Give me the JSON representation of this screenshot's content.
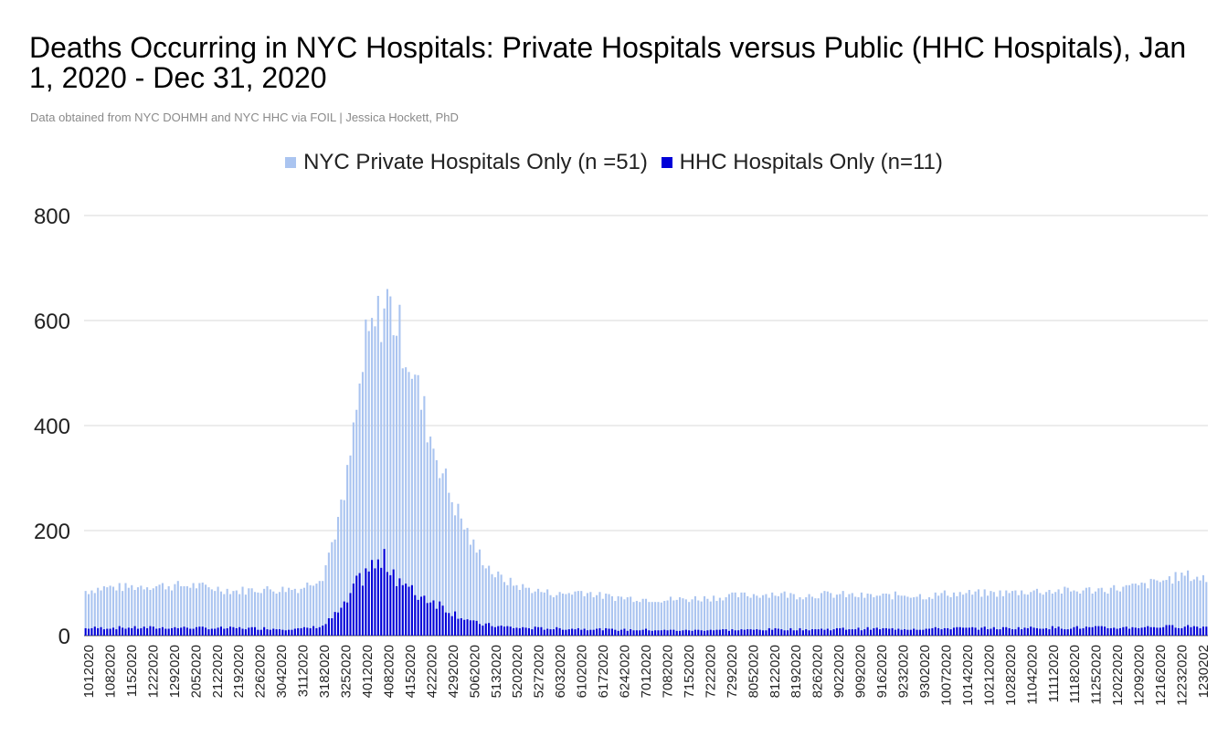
{
  "chart_data": {
    "type": "bar",
    "title": "Deaths Occurring in NYC Hospitals: Private Hospitals versus Public (HHC Hospitals), Jan 1, 2020 - Dec 31, 2020",
    "subtitle": "Data obtained from NYC DOHMH and NYC HHC via FOIL | Jessica Hockett, PhD",
    "xlabel": "",
    "ylabel": "",
    "ylim": [
      0,
      800
    ],
    "yticks": [
      "0",
      "200",
      "400",
      "600",
      "800"
    ],
    "legend_position": "top-center",
    "grid": true,
    "tick_labels": [
      "1012020",
      "1082020",
      "1152020",
      "1222020",
      "1292020",
      "2052020",
      "2122020",
      "2192020",
      "2262020",
      "3042020",
      "3112020",
      "3182020",
      "3252020",
      "4012020",
      "4082020",
      "4152020",
      "4222020",
      "4292020",
      "5062020",
      "5132020",
      "5202020",
      "5272020",
      "6032020",
      "6102020",
      "6172020",
      "6242020",
      "7012020",
      "7082020",
      "7152020",
      "7222020",
      "7292020",
      "8052020",
      "8122020",
      "8192020",
      "8262020",
      "9022020",
      "9092020",
      "9162020",
      "9232020",
      "9302020",
      "10072020",
      "10142020",
      "10212020",
      "10282020",
      "11042020",
      "11112020",
      "11182020",
      "11252020",
      "12022020",
      "12092020",
      "12162020",
      "12232020",
      "1230202"
    ],
    "weekly_private": [
      85,
      92,
      92,
      95,
      95,
      95,
      90,
      85,
      88,
      88,
      90,
      115,
      260,
      550,
      640,
      530,
      380,
      260,
      170,
      115,
      95,
      85,
      78,
      85,
      75,
      72,
      70,
      68,
      70,
      72,
      75,
      78,
      80,
      76,
      78,
      78,
      75,
      75,
      78,
      75,
      80,
      80,
      80,
      82,
      85,
      85,
      85,
      88,
      90,
      95,
      105,
      115,
      108
    ],
    "weekly_hhc": [
      14,
      15,
      15,
      15,
      15,
      15,
      14,
      14,
      14,
      13,
      13,
      18,
      55,
      125,
      140,
      85,
      70,
      45,
      25,
      18,
      15,
      14,
      13,
      13,
      12,
      11,
      11,
      10,
      10,
      11,
      11,
      11,
      12,
      12,
      12,
      13,
      13,
      13,
      13,
      13,
      14,
      14,
      14,
      14,
      15,
      15,
      15,
      15,
      15,
      16,
      17,
      18,
      17
    ],
    "series": [
      {
        "name": "NYC Private Hospitals Only (n =51)",
        "color": "#aac4f0",
        "values": []
      },
      {
        "name": "HHC Hospitals Only (n=11)",
        "color": "#0000d8",
        "values": []
      }
    ]
  }
}
